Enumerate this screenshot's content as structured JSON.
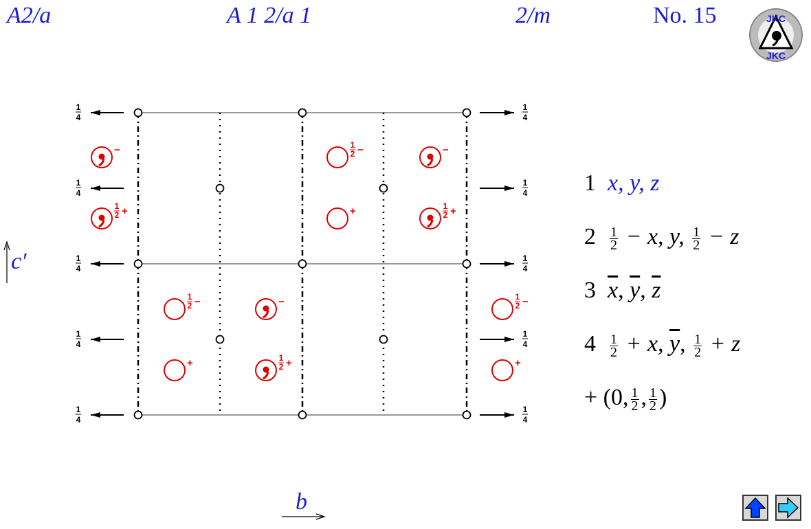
{
  "header": {
    "short_symbol": "A2/a",
    "full_symbol": "A 1 2/a 1",
    "point_group": "2/m",
    "number_label": "No. 15",
    "logo_text": "JKC"
  },
  "diagram": {
    "height_label_num": "1",
    "height_label_den": "4",
    "sign_plus": "+",
    "sign_minus": "−",
    "half_num": "1",
    "half_den": "2"
  },
  "axes": {
    "vertical_label": "c′",
    "horizontal_label": "b"
  },
  "operations": {
    "op1_num": "1",
    "op1_text": "x, y, z",
    "op2_num": "2",
    "op2_part1": "− x, y,",
    "op2_part2": "− z",
    "op3_num": "3",
    "op3_x": "x",
    "op3_y": "y",
    "op3_z": "z",
    "op4_num": "4",
    "op4_part1": "+ x,",
    "op4_y": "y",
    "op4_part2": "+ z",
    "centering_prefix": "+ (0,",
    "centering_suffix": ")",
    "half_num": "1",
    "half_den": "2"
  },
  "nav": {
    "up_icon": "up-arrow-icon",
    "next_icon": "right-arrow-icon"
  },
  "colors": {
    "header": "#1a1adc",
    "symbol": "#dd0000",
    "nav_up": "#0044ff",
    "nav_next": "#33ccff"
  }
}
